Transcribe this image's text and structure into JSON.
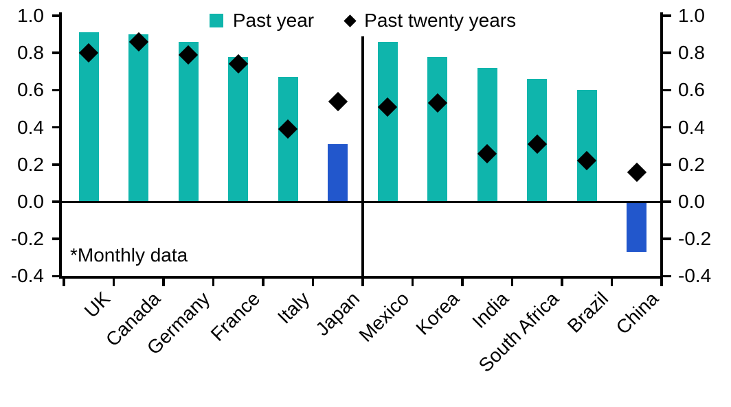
{
  "colors": {
    "teal": "#0FB5AC",
    "blue": "#2257CC",
    "axis": "#000000",
    "background": "#FFFFFF"
  },
  "chart_data": {
    "type": "bar",
    "title": "",
    "xlabel": "",
    "ylabel": "",
    "categories": [
      "UK",
      "Canada",
      "Germany",
      "France",
      "Italy",
      "Japan",
      "Mexico",
      "Korea",
      "India",
      "South Africa",
      "Brazil",
      "China"
    ],
    "series": [
      {
        "name": "Past year",
        "type": "bar",
        "values": [
          0.91,
          0.9,
          0.86,
          0.78,
          0.67,
          0.31,
          0.86,
          0.78,
          0.72,
          0.66,
          0.6,
          -0.27
        ],
        "point_colors": [
          "teal",
          "teal",
          "teal",
          "teal",
          "teal",
          "blue",
          "teal",
          "teal",
          "teal",
          "teal",
          "teal",
          "blue"
        ]
      },
      {
        "name": "Past twenty years",
        "type": "scatter",
        "marker": "diamond",
        "values": [
          0.8,
          0.86,
          0.79,
          0.74,
          0.39,
          0.54,
          0.51,
          0.53,
          0.26,
          0.31,
          0.22,
          0.16
        ]
      }
    ],
    "ylim": [
      -0.4,
      1.0
    ],
    "yticks": [
      1.0,
      0.8,
      0.6,
      0.4,
      0.2,
      0.0,
      -0.2,
      -0.4
    ],
    "ytick_labels": [
      "1.0",
      "0.8",
      "0.6",
      "0.4",
      "0.2",
      "0.0",
      "-0.2",
      "-0.4"
    ],
    "dual_axis_labels": true,
    "grid": false,
    "legend_position": "top-center",
    "panel_divider_after_category": "Japan",
    "annotations": [
      "*Monthly data"
    ]
  }
}
